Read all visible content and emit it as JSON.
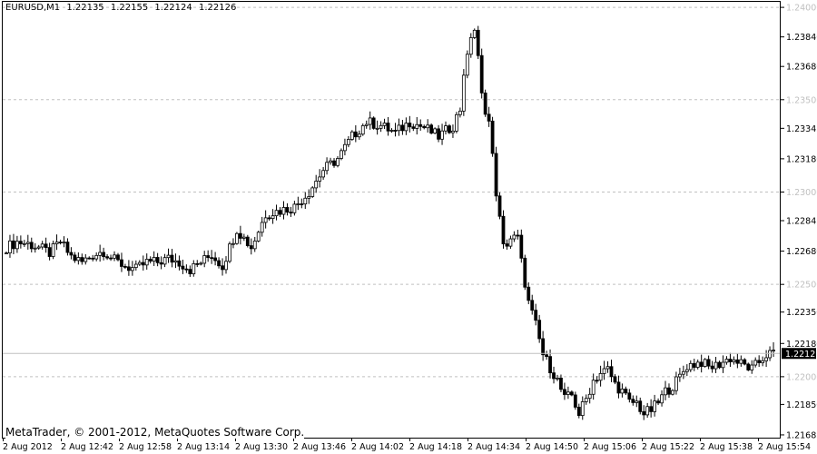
{
  "header": {
    "symbol": "EURUSD,M1",
    "open": "1.22135",
    "high": "1.22155",
    "low": "1.22124",
    "close": "1.22126"
  },
  "copyright": "MetaTrader, © 2001-2012, MetaQuotes Software Corp.",
  "colors": {
    "background": "#ffffff",
    "axis": "#000000",
    "grid": "#c0c0c0",
    "bull_fill": "#ffffff",
    "bear_fill": "#000000",
    "candle_outline": "#000000",
    "price_marker": "#000000",
    "price_marker_text": "#ffffff",
    "bid_line": "#c0c0c0"
  },
  "chart_data": {
    "type": "candlestick",
    "grid": true,
    "ylim": [
      1.2167,
      1.2403
    ],
    "y_tick_labels": [
      "1.24000",
      "1.23840",
      "1.23680",
      "1.23500",
      "1.23345",
      "1.23180",
      "1.23000",
      "1.22845",
      "1.22680",
      "1.22500",
      "1.22350",
      "1.22180",
      "1.22000",
      "1.21850",
      "1.21685"
    ],
    "x_tick_labels": [
      "2 Aug 2012",
      "2 Aug 12:42",
      "2 Aug 12:58",
      "2 Aug 13:14",
      "2 Aug 13:30",
      "2 Aug 13:46",
      "2 Aug 14:02",
      "2 Aug 14:18",
      "2 Aug 14:34",
      "2 Aug 14:50",
      "2 Aug 15:06",
      "2 Aug 15:22",
      "2 Aug 15:38",
      "2 Aug 15:54"
    ],
    "current_price": "1.22126",
    "anchors": [
      [
        0,
        1.227
      ],
      [
        3,
        1.2273
      ],
      [
        6,
        1.2272
      ],
      [
        9,
        1.227
      ],
      [
        12,
        1.2267
      ],
      [
        15,
        1.2273
      ],
      [
        18,
        1.2265
      ],
      [
        21,
        1.2262
      ],
      [
        24,
        1.2266
      ],
      [
        27,
        1.2268
      ],
      [
        30,
        1.2263
      ],
      [
        33,
        1.226
      ],
      [
        36,
        1.2258
      ],
      [
        39,
        1.2262
      ],
      [
        42,
        1.2262
      ],
      [
        45,
        1.2264
      ],
      [
        48,
        1.2262
      ],
      [
        51,
        1.2258
      ],
      [
        54,
        1.2262
      ],
      [
        57,
        1.2266
      ],
      [
        60,
        1.226
      ],
      [
        64,
        1.228
      ],
      [
        68,
        1.227
      ],
      [
        72,
        1.2288
      ],
      [
        76,
        1.229
      ],
      [
        80,
        1.2292
      ],
      [
        84,
        1.23
      ],
      [
        88,
        1.2312
      ],
      [
        92,
        1.2318
      ],
      [
        96,
        1.233
      ],
      [
        100,
        1.2338
      ],
      [
        104,
        1.2336
      ],
      [
        108,
        1.2332
      ],
      [
        112,
        1.2338
      ],
      [
        116,
        1.2335
      ],
      [
        120,
        1.233
      ],
      [
        124,
        1.2336
      ],
      [
        126,
        1.2345
      ],
      [
        127,
        1.2365
      ],
      [
        128,
        1.2372
      ],
      [
        129,
        1.2385
      ],
      [
        130,
        1.2388
      ],
      [
        131,
        1.2372
      ],
      [
        132,
        1.2352
      ],
      [
        134,
        1.2338
      ],
      [
        136,
        1.23
      ],
      [
        138,
        1.227
      ],
      [
        140,
        1.2275
      ],
      [
        142,
        1.2275
      ],
      [
        143,
        1.2262
      ],
      [
        145,
        1.224
      ],
      [
        147,
        1.2228
      ],
      [
        149,
        1.2212
      ],
      [
        151,
        1.2205
      ],
      [
        153,
        1.2198
      ],
      [
        155,
        1.2188
      ],
      [
        157,
        1.219
      ],
      [
        159,
        1.218
      ],
      [
        161,
        1.2188
      ],
      [
        163,
        1.2198
      ],
      [
        165,
        1.2202
      ],
      [
        167,
        1.2204
      ],
      [
        169,
        1.2196
      ],
      [
        171,
        1.2192
      ],
      [
        173,
        1.2186
      ],
      [
        175,
        1.2186
      ],
      [
        177,
        1.218
      ],
      [
        179,
        1.2182
      ],
      [
        181,
        1.2186
      ],
      [
        183,
        1.2192
      ],
      [
        185,
        1.2195
      ],
      [
        187,
        1.22
      ],
      [
        189,
        1.2206
      ],
      [
        191,
        1.2207
      ],
      [
        193,
        1.2208
      ],
      [
        195,
        1.2205
      ],
      [
        197,
        1.2206
      ],
      [
        199,
        1.2208
      ],
      [
        201,
        1.221
      ],
      [
        203,
        1.2208
      ],
      [
        205,
        1.2206
      ],
      [
        207,
        1.2204
      ],
      [
        209,
        1.2208
      ],
      [
        211,
        1.2212
      ],
      [
        213,
        1.22126
      ]
    ]
  }
}
